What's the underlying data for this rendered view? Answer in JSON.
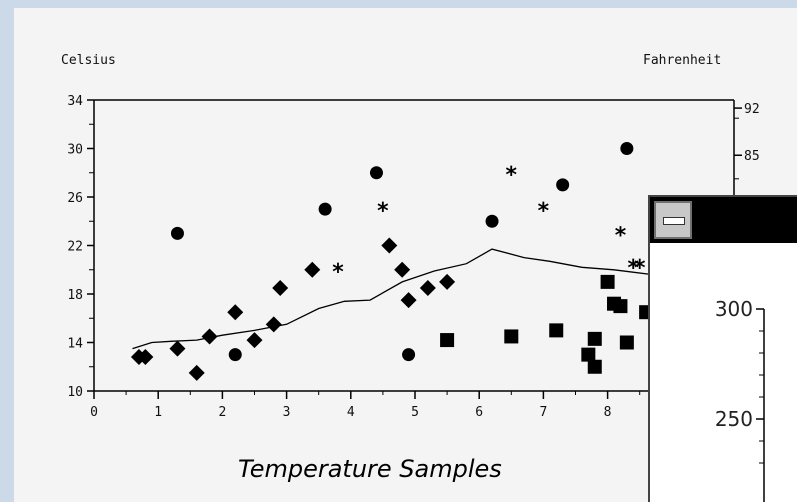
{
  "left_axis_unit": "Celsius",
  "right_axis_unit": "Fahrenheit",
  "chart_title": "Temperature Samples",
  "chart_data": {
    "type": "scatter",
    "title": "Temperature Samples",
    "ylabel": "Celsius",
    "y2label": "Fahrenheit",
    "xlim": [
      0,
      9
    ],
    "ylim": [
      10,
      34
    ],
    "x_ticks": [
      "0",
      "1",
      "2",
      "3",
      "4",
      "5",
      "6",
      "7",
      "8"
    ],
    "y_ticks": [
      "10",
      "14",
      "18",
      "22",
      "26",
      "30",
      "34"
    ],
    "y2_ticks": [
      "85",
      "92"
    ],
    "series": [
      {
        "marker": "circle",
        "points": [
          [
            1.3,
            23
          ],
          [
            2.2,
            13
          ],
          [
            3.6,
            25
          ],
          [
            4.4,
            28
          ],
          [
            4.9,
            13
          ],
          [
            6.2,
            24
          ],
          [
            7.3,
            27
          ],
          [
            8.3,
            30
          ]
        ]
      },
      {
        "marker": "diamond",
        "points": [
          [
            0.7,
            12.8
          ],
          [
            0.8,
            12.8
          ],
          [
            1.3,
            13.5
          ],
          [
            1.6,
            11.5
          ],
          [
            1.8,
            14.5
          ],
          [
            2.2,
            16.5
          ],
          [
            2.5,
            14.2
          ],
          [
            2.8,
            15.5
          ],
          [
            2.9,
            18.5
          ],
          [
            3.4,
            20
          ],
          [
            4.6,
            22
          ],
          [
            4.8,
            20
          ],
          [
            4.9,
            17.5
          ],
          [
            5.2,
            18.5
          ],
          [
            5.5,
            19
          ]
        ]
      },
      {
        "marker": "asterisk",
        "points": [
          [
            3.8,
            20
          ],
          [
            4.5,
            25
          ],
          [
            6.5,
            28
          ],
          [
            7.0,
            25
          ],
          [
            8.2,
            23
          ],
          [
            8.4,
            20.3
          ],
          [
            8.5,
            20.3
          ]
        ]
      },
      {
        "marker": "square",
        "points": [
          [
            5.5,
            14.2
          ],
          [
            6.5,
            14.5
          ],
          [
            7.2,
            15
          ],
          [
            7.7,
            13
          ],
          [
            7.8,
            12
          ],
          [
            7.8,
            14.3
          ],
          [
            8.0,
            19
          ],
          [
            8.1,
            17.2
          ],
          [
            8.2,
            17
          ],
          [
            8.3,
            14
          ],
          [
            8.6,
            16.5
          ]
        ]
      },
      {
        "marker": "line",
        "points": [
          [
            0.6,
            13.5
          ],
          [
            0.9,
            14
          ],
          [
            1.2,
            14.1
          ],
          [
            1.6,
            14.2
          ],
          [
            2.0,
            14.6
          ],
          [
            2.5,
            15
          ],
          [
            3.0,
            15.5
          ],
          [
            3.5,
            16.8
          ],
          [
            3.9,
            17.4
          ],
          [
            4.3,
            17.5
          ],
          [
            4.8,
            19
          ],
          [
            5.3,
            19.9
          ],
          [
            5.8,
            20.5
          ],
          [
            6.2,
            21.7
          ],
          [
            6.7,
            21
          ],
          [
            7.1,
            20.7
          ],
          [
            7.6,
            20.2
          ],
          [
            8.1,
            20
          ],
          [
            8.7,
            19.6
          ]
        ]
      }
    ]
  },
  "sub_window": {
    "y_ticks": [
      {
        "label": "300",
        "value": 300
      },
      {
        "label": "250",
        "value": 250
      }
    ]
  }
}
